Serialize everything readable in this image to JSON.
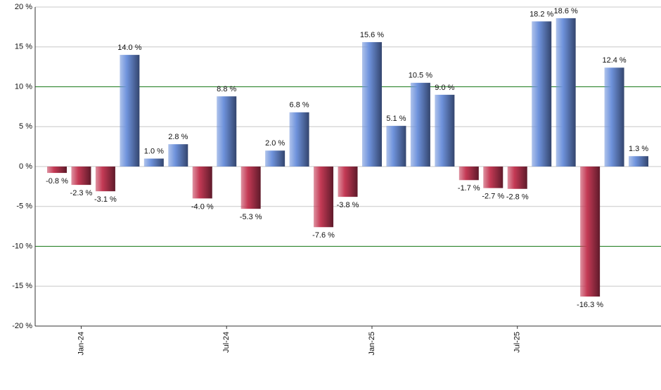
{
  "chart_data": {
    "type": "bar",
    "categories": [
      null,
      "Jan-24",
      null,
      null,
      null,
      null,
      null,
      "Jul-24",
      null,
      null,
      null,
      null,
      null,
      "Jan-25",
      null,
      null,
      null,
      null,
      null,
      "Jul-25",
      null,
      null,
      null,
      null,
      null
    ],
    "values": [
      -0.8,
      -2.3,
      -3.1,
      14.0,
      1.0,
      2.8,
      -4.0,
      8.8,
      -5.3,
      2.0,
      6.8,
      -7.6,
      -3.8,
      15.6,
      5.1,
      10.5,
      9.0,
      -1.7,
      -2.7,
      -2.8,
      18.2,
      18.6,
      -16.3,
      12.4,
      1.3
    ],
    "value_labels": [
      "-0.8 %",
      "-2.3 %",
      "-3.1 %",
      "14.0 %",
      "1.0 %",
      "2.8 %",
      "-4.0 %",
      "8.8 %",
      "-5.3 %",
      "2.0 %",
      "6.8 %",
      "-7.6 %",
      "-3.8 %",
      "15.6 %",
      "5.1 %",
      "10.5 %",
      "9.0 %",
      "-1.7 %",
      "-2.7 %",
      "-2.8 %",
      "18.2 %",
      "18.6 %",
      "-16.3 %",
      "12.4 %",
      "1.3 %"
    ],
    "positive_color": "#6f93dc",
    "negative_color": "#c43a55",
    "ylim": [
      -20,
      20
    ],
    "yticks": [
      {
        "value": -20,
        "label": "-20 %"
      },
      {
        "value": -15,
        "label": "-15 %"
      },
      {
        "value": -10,
        "label": "-10 %"
      },
      {
        "value": -5,
        "label": "-5 %"
      },
      {
        "value": 0,
        "label": "0 %"
      },
      {
        "value": 5,
        "label": "5 %"
      },
      {
        "value": 10,
        "label": "10 %"
      },
      {
        "value": 15,
        "label": "15 %"
      },
      {
        "value": 20,
        "label": "20 %"
      }
    ],
    "grid": true,
    "grid_color": "#c8c8c8",
    "reference_lines": [
      10,
      -10
    ],
    "reference_color": "#1a7a1a"
  }
}
